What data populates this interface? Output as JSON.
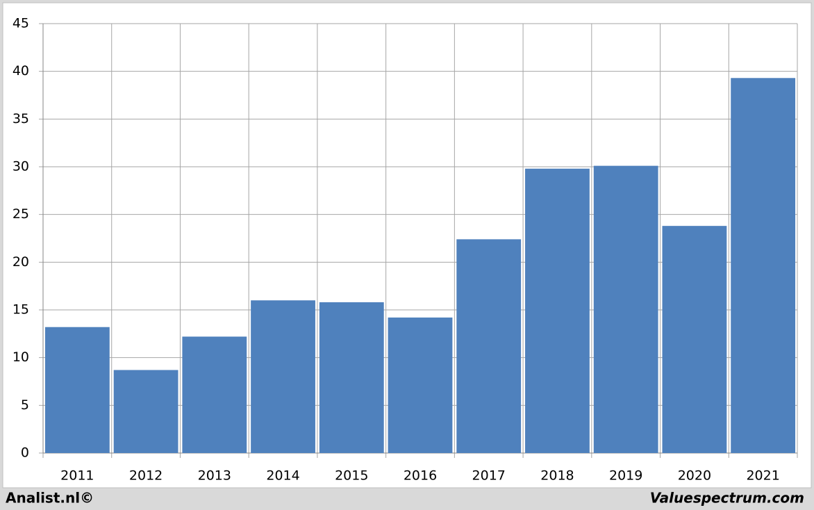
{
  "chart_data": {
    "type": "bar",
    "categories": [
      "2011",
      "2012",
      "2013",
      "2014",
      "2015",
      "2016",
      "2017",
      "2018",
      "2019",
      "2020",
      "2021"
    ],
    "values": [
      13.2,
      8.7,
      12.2,
      16.0,
      15.8,
      14.2,
      22.4,
      29.8,
      30.1,
      23.8,
      39.3
    ],
    "color": "#4f81bd",
    "ylim": [
      0,
      45
    ],
    "yticks": [
      0,
      5,
      10,
      15,
      20,
      25,
      30,
      35,
      40,
      45
    ],
    "grid": true
  },
  "footer": {
    "left": "Analist.nl©",
    "right": "Valuespectrum.com"
  }
}
